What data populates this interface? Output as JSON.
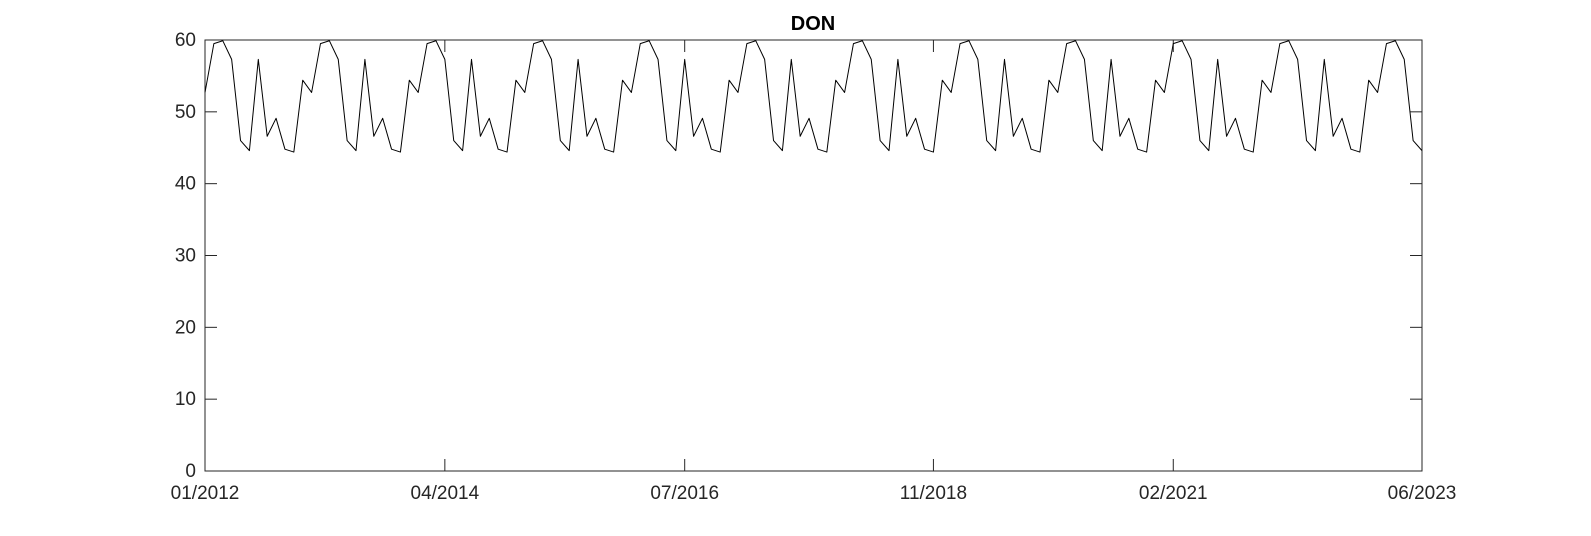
{
  "chart_data": {
    "type": "line",
    "title": "DON",
    "xlabel": "",
    "ylabel": "",
    "x_tick_labels": [
      "01/2012",
      "04/2014",
      "07/2016",
      "11/2018",
      "02/2021",
      "06/2023"
    ],
    "x_range": [
      "01/2012",
      "06/2023"
    ],
    "ylim": [
      0,
      60
    ],
    "y_ticks": [
      0,
      10,
      20,
      30,
      40,
      50,
      60
    ],
    "grid": false,
    "line_color": "#000000",
    "series": [
      {
        "seasonal_pattern_monthly": [
          52.7,
          59.5,
          59.9,
          57.3,
          46.0,
          44.6,
          57.3,
          46.6,
          49.1,
          44.8,
          44.4,
          54.4
        ],
        "start": "01/2012",
        "end": "06/2023",
        "n_points": 138
      }
    ]
  }
}
